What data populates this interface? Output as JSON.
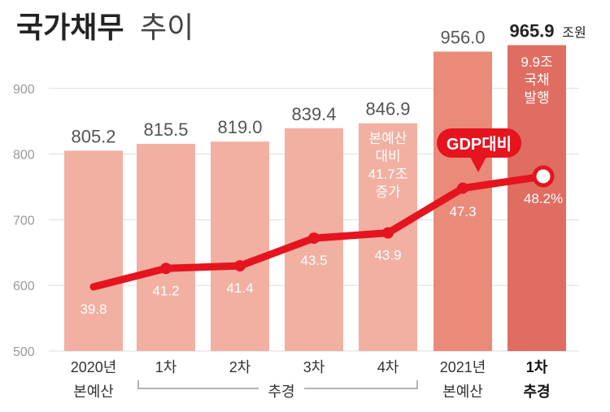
{
  "title": {
    "main": "국가채무",
    "sub": "추이"
  },
  "colors": {
    "bar": "#f2b0a2",
    "bar_2021": "#ea8b79",
    "bar_latest": "#e06d61",
    "line": "#e5141f",
    "axis_text": "#9a9a9a",
    "text_dark": "#222222",
    "value_text": "#555555",
    "grid": "#dedede"
  },
  "chart_data": {
    "type": "bar",
    "categories": [
      [
        "2020년",
        "본예산"
      ],
      [
        "1차",
        ""
      ],
      [
        "2차",
        ""
      ],
      [
        "3차",
        ""
      ],
      [
        "4차",
        ""
      ],
      [
        "2021년",
        "본예산"
      ],
      [
        "1차",
        "추경"
      ]
    ],
    "values": [
      805.2,
      815.5,
      819.0,
      839.4,
      846.9,
      956.0,
      965.9
    ],
    "value_labels": [
      "805.2",
      "815.5",
      "819.0",
      "839.4",
      "846.9",
      "956.0",
      "965.9"
    ],
    "unit": "조원",
    "ylim": [
      500,
      1000
    ],
    "yticks": [
      500,
      600,
      700,
      800,
      900
    ],
    "line_series": {
      "name": "GDP대비",
      "values": [
        39.8,
        41.2,
        41.4,
        43.5,
        43.9,
        47.3,
        48.2
      ],
      "labels": [
        "39.8",
        "41.2",
        "41.4",
        "43.5",
        "43.9",
        "47.3",
        "48.2%"
      ]
    },
    "group_label": "추경",
    "annotations": {
      "bar4_note": [
        "본예산",
        "대비",
        "41.7조",
        "증가"
      ],
      "bar6_note": [
        "9.9조",
        "국채",
        "발행"
      ]
    }
  }
}
